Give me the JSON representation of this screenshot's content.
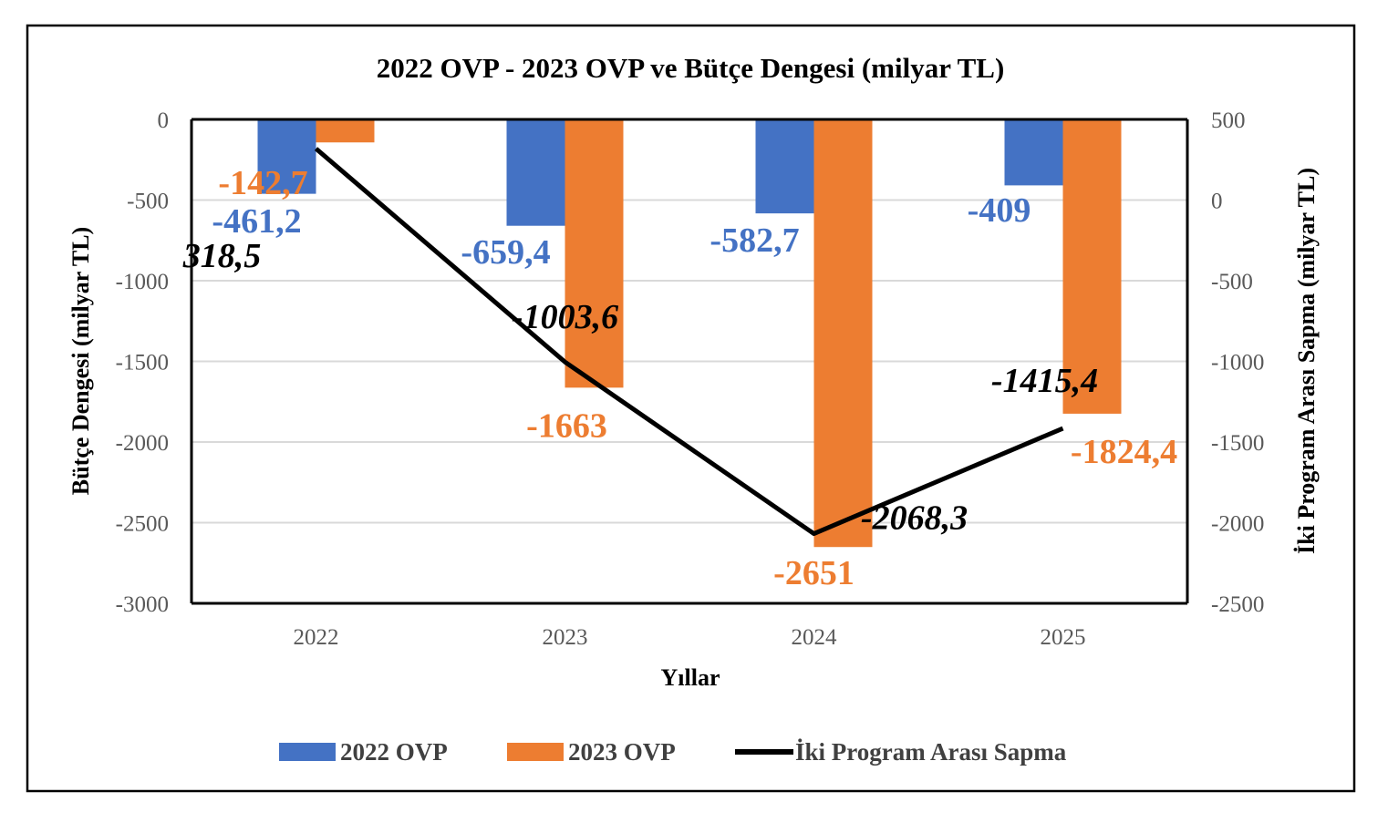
{
  "chart_data": {
    "type": "bar",
    "title": "2022 OVP - 2023 OVP ve Bütçe Dengesi (milyar TL)",
    "xlabel": "Yıllar",
    "ylabel": "Bütçe Dengesi (milyar TL)",
    "y2label": "İki Program Arası Sapma (milyar TL)",
    "categories": [
      "2022",
      "2023",
      "2024",
      "2025"
    ],
    "ylim": [
      -3000,
      0
    ],
    "y2lim": [
      -2500,
      500
    ],
    "yticks": [
      "0",
      "-500",
      "-1000",
      "-1500",
      "-2000",
      "-2500",
      "-3000"
    ],
    "y2ticks": [
      "500",
      "0",
      "-500",
      "-1000",
      "-1500",
      "-2000",
      "-2500"
    ],
    "grid": true,
    "legend_position": "bottom",
    "series": [
      {
        "name": "2022 OVP",
        "type": "bar",
        "axis": "left",
        "color": "#4472c4",
        "values": [
          -461.2,
          -659.4,
          -582.7,
          -409
        ],
        "labels": [
          "-461,2",
          "-659,4",
          "-582,7",
          "-409"
        ]
      },
      {
        "name": "2023 OVP",
        "type": "bar",
        "axis": "left",
        "color": "#ed7d31",
        "values": [
          -142.7,
          -1663,
          -2651,
          -1824.4
        ],
        "labels": [
          "-142,7",
          "-1663",
          "-2651",
          "-1824,4"
        ]
      },
      {
        "name": "İki Program Arası Sapma",
        "type": "line",
        "axis": "right",
        "color": "#000000",
        "values": [
          318.5,
          -1003.6,
          -2068.3,
          -1415.4
        ],
        "labels": [
          "318,5",
          "-1003,6",
          "-2068,3",
          "-1415,4"
        ]
      }
    ]
  }
}
